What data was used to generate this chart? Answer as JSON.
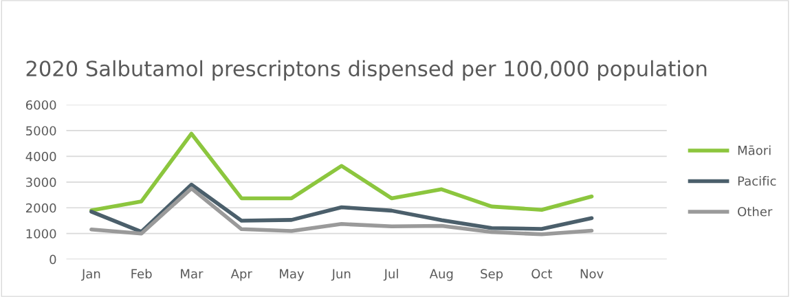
{
  "chart_data": {
    "type": "line",
    "title": "2020 Salbutamol prescriptons dispensed per 100,000 population",
    "categories": [
      "Jan",
      "Feb",
      "Mar",
      "Apr",
      "May",
      "Jun",
      "Jul",
      "Aug",
      "Sep",
      "Oct",
      "Nov",
      null
    ],
    "series": [
      {
        "name": "Māori",
        "color": "#8cc63e",
        "values": [
          1900,
          2250,
          4880,
          2370,
          2370,
          3630,
          2370,
          2720,
          2050,
          1920,
          2440,
          null
        ]
      },
      {
        "name": "Pacific",
        "color": "#4b5f6b",
        "values": [
          1850,
          1070,
          2900,
          1500,
          1530,
          2020,
          1890,
          1520,
          1210,
          1180,
          1600,
          null
        ]
      },
      {
        "name": "Other",
        "color": "#9a9a9a",
        "values": [
          1160,
          1000,
          2750,
          1170,
          1100,
          1370,
          1280,
          1300,
          1060,
          970,
          1110,
          null
        ]
      }
    ],
    "ylim": [
      0,
      6000
    ],
    "yticks": [
      0,
      1000,
      2000,
      3000,
      4000,
      5000,
      6000
    ],
    "grid": "y",
    "legend": "right",
    "marker": "none",
    "line_style": "solid"
  }
}
